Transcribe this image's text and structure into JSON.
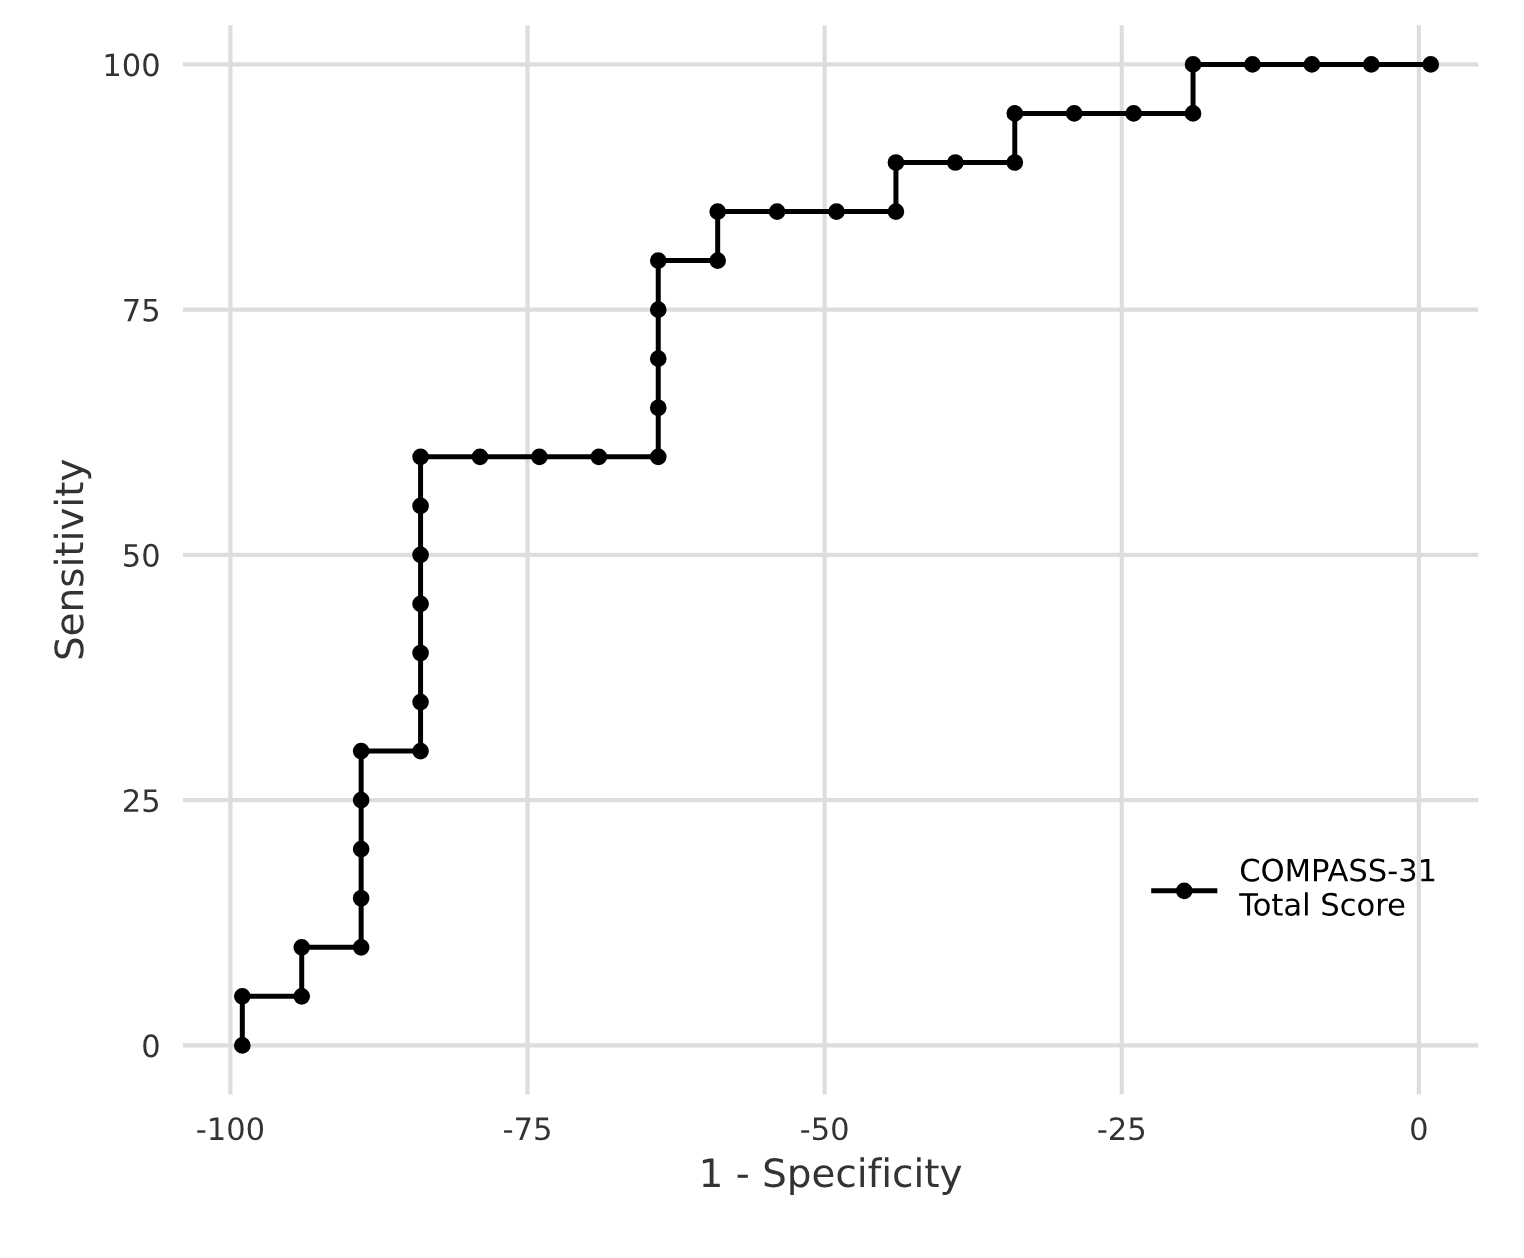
{
  "chart_data": {
    "type": "step",
    "xlabel": "1 - Specificity",
    "ylabel": "Sensitivity",
    "x": [
      -99,
      -99,
      -94,
      -94,
      -89,
      -89,
      -89,
      -89,
      -89,
      -84,
      -84,
      -84,
      -84,
      -84,
      -84,
      -84,
      -79,
      -74,
      -69,
      -64,
      -64,
      -64,
      -64,
      -64,
      -59,
      -59,
      -54,
      -49,
      -44,
      -44,
      -39,
      -34,
      -34,
      -29,
      -24,
      -19,
      -19,
      -14,
      -9,
      -4,
      1
    ],
    "series": [
      {
        "name": "COMPASS-31\nTotal Score",
        "color": "#000000",
        "values": [
          0,
          5,
          5,
          10,
          10,
          15,
          20,
          25,
          30,
          30,
          35,
          40,
          45,
          50,
          55,
          60,
          60,
          60,
          60,
          60,
          65,
          70,
          75,
          80,
          80,
          85,
          85,
          85,
          85,
          90,
          90,
          90,
          95,
          95,
          95,
          95,
          100,
          100,
          100,
          100,
          100
        ]
      }
    ],
    "xlim": [
      -104,
      5
    ],
    "ylim": [
      -5,
      104
    ],
    "xticks": [
      -100,
      -75,
      -50,
      -25,
      0
    ],
    "yticks": [
      0,
      25,
      50,
      75,
      100
    ],
    "grid": true,
    "legend": "bottom right",
    "marker": "circle",
    "line_style": "solid"
  }
}
